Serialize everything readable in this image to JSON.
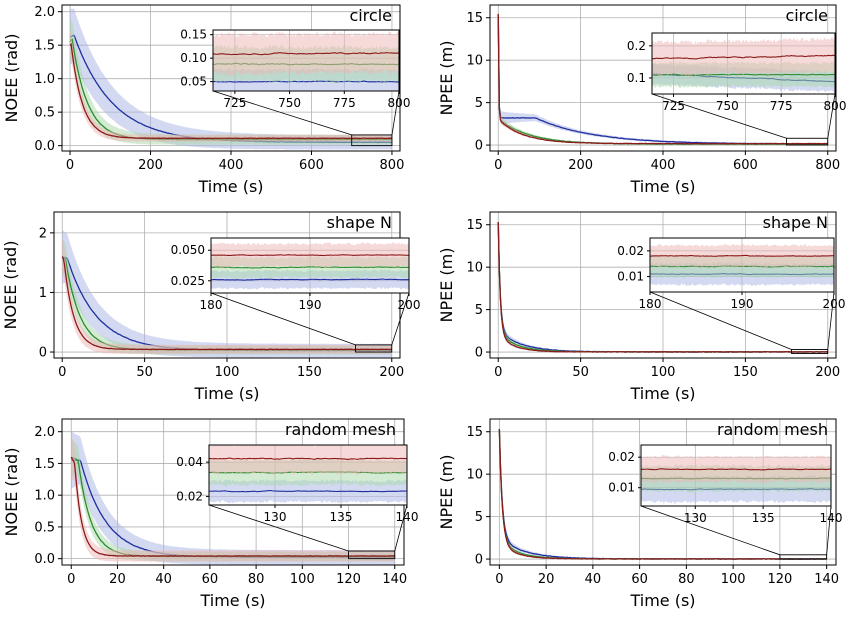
{
  "colors": {
    "blue": "#1f2f9e",
    "green": "#2e8b2e",
    "red": "#8b1a1a",
    "blue_band": "#aab4e6",
    "green_band": "#a6d7a6",
    "red_band": "#eeb4b4"
  },
  "chart_data": [
    {
      "id": "p1",
      "type": "line",
      "title": "circle",
      "xlabel": "Time (s)",
      "ylabel": "NOEE (rad)",
      "xlim": [
        -20,
        820
      ],
      "ylim": [
        -0.08,
        2.1
      ],
      "xticks": [
        0,
        200,
        400,
        600,
        800
      ],
      "yticks": [
        0.0,
        0.5,
        1.0,
        1.5,
        2.0
      ],
      "yfmt": 1,
      "tmax": 800,
      "series": [
        {
          "color": "blue",
          "start": 1.62,
          "peak": 1.65,
          "peakT": 10,
          "tau": 95,
          "final": 0.05,
          "band": 0.42
        },
        {
          "color": "green",
          "start": 1.55,
          "peak": 1.6,
          "peakT": 5,
          "tau": 38,
          "final": 0.09,
          "band": 0.3
        },
        {
          "color": "red",
          "start": 1.5,
          "peak": 1.55,
          "peakT": 2,
          "tau": 28,
          "final": 0.11,
          "band": 0.2
        }
      ],
      "inset": {
        "xlim": [
          715,
          800
        ],
        "ylim": [
          0.03,
          0.16
        ],
        "xticks": [
          725,
          750,
          775,
          800
        ],
        "yticks": [
          0.05,
          0.1,
          0.15
        ],
        "yfmt": 2,
        "levels": {
          "blue": 0.05,
          "green": 0.087,
          "red": 0.11
        },
        "spread": {
          "blue": 0.025,
          "green": 0.035,
          "red": 0.04
        },
        "zoom": [
          700,
          800,
          0,
          0.16
        ]
      }
    },
    {
      "id": "p2",
      "type": "line",
      "title": "circle",
      "xlabel": "Time (s)",
      "ylabel": "NPEE (m)",
      "xlim": [
        -20,
        820
      ],
      "ylim": [
        -0.7,
        16.5
      ],
      "xticks": [
        0,
        200,
        400,
        600,
        800
      ],
      "yticks": [
        0,
        5,
        10,
        15
      ],
      "yfmt": 0,
      "tmax": 800,
      "kind": "npee_circle",
      "series": [
        {
          "color": "blue",
          "start": 15.3,
          "plateau": 3.1,
          "tau": 140,
          "final": 0.1,
          "band": 0.8
        },
        {
          "color": "green",
          "start": 15.3,
          "plateau": 3.0,
          "tau": 75,
          "final": 0.11,
          "band": 0.5
        },
        {
          "color": "red",
          "start": 15.3,
          "plateau": 2.9,
          "tau": 60,
          "final": 0.17,
          "band": 0.4
        }
      ],
      "inset": {
        "xlim": [
          715,
          800
        ],
        "ylim": [
          0.05,
          0.24
        ],
        "xticks": [
          725,
          750,
          775,
          800
        ],
        "yticks": [
          0.1,
          0.2
        ],
        "yfmt": 1,
        "levels": {
          "blue": 0.1,
          "green": 0.11,
          "red": 0.165
        },
        "spread": {
          "blue": 0.03,
          "green": 0.035,
          "red": 0.05
        },
        "trend": {
          "blue": -0.025,
          "green": 0.0,
          "red": 0.01
        },
        "zoom": [
          700,
          800,
          0,
          0.8
        ]
      }
    },
    {
      "id": "p3",
      "type": "line",
      "title": "shape N",
      "xlabel": "Time (s)",
      "ylabel": "NOEE (rad)",
      "xlim": [
        -5,
        205
      ],
      "ylim": [
        -0.1,
        2.35
      ],
      "xticks": [
        0,
        50,
        100,
        150,
        200
      ],
      "yticks": [
        0,
        1,
        2
      ],
      "yfmt": 0,
      "tmax": 200,
      "series": [
        {
          "color": "blue",
          "start": 1.6,
          "peak": 1.58,
          "peakT": 3,
          "tau": 18,
          "final": 0.025,
          "band": 0.45
        },
        {
          "color": "green",
          "start": 1.6,
          "peak": 1.55,
          "peakT": 2,
          "tau": 9,
          "final": 0.036,
          "band": 0.3
        },
        {
          "color": "red",
          "start": 1.6,
          "peak": 1.55,
          "peakT": 1,
          "tau": 6,
          "final": 0.045,
          "band": 0.3
        }
      ],
      "inset": {
        "xlim": [
          180,
          200
        ],
        "ylim": [
          0.015,
          0.06
        ],
        "xticks": [
          180,
          190,
          200
        ],
        "yticks": [
          0.025,
          0.05
        ],
        "yfmt": 3,
        "levels": {
          "blue": 0.026,
          "green": 0.036,
          "red": 0.046
        },
        "spread": {
          "blue": 0.007,
          "green": 0.008,
          "red": 0.009
        },
        "zoom": [
          178,
          200,
          0,
          0.12
        ]
      }
    },
    {
      "id": "p4",
      "type": "line",
      "title": "shape N",
      "xlabel": "Time (s)",
      "ylabel": "NPEE (m)",
      "xlim": [
        -5,
        205
      ],
      "ylim": [
        -0.7,
        16.5
      ],
      "xticks": [
        0,
        50,
        100,
        150,
        200
      ],
      "yticks": [
        0,
        5,
        10,
        15
      ],
      "yfmt": 0,
      "tmax": 200,
      "kind": "npee",
      "series": [
        {
          "color": "blue",
          "start": 15.3,
          "plateau": 2.5,
          "tau": 14,
          "final": 0.012,
          "band": 0.6
        },
        {
          "color": "green",
          "start": 15.3,
          "plateau": 2.3,
          "tau": 11,
          "final": 0.015,
          "band": 0.5
        },
        {
          "color": "red",
          "start": 15.3,
          "plateau": 2.1,
          "tau": 9,
          "final": 0.018,
          "band": 0.4
        }
      ],
      "inset": {
        "xlim": [
          180,
          200
        ],
        "ylim": [
          0.004,
          0.025
        ],
        "xticks": [
          180,
          190,
          200
        ],
        "yticks": [
          0.01,
          0.02
        ],
        "yfmt": 2,
        "levels": {
          "blue": 0.011,
          "green": 0.014,
          "red": 0.018
        },
        "spread": {
          "blue": 0.004,
          "green": 0.004,
          "red": 0.004
        },
        "zoom": [
          178,
          200,
          0,
          0.3
        ]
      }
    },
    {
      "id": "p5",
      "type": "line",
      "title": "random mesh",
      "xlabel": "Time (s)",
      "ylabel": "NOEE (rad)",
      "xlim": [
        -4,
        144
      ],
      "ylim": [
        -0.1,
        2.2
      ],
      "xticks": [
        0,
        20,
        40,
        60,
        80,
        100,
        120,
        140
      ],
      "yticks": [
        0.0,
        0.5,
        1.0,
        1.5,
        2.0
      ],
      "yfmt": 1,
      "tmax": 140,
      "series": [
        {
          "color": "blue",
          "start": 1.55,
          "peak": 1.55,
          "peakT": 4,
          "tau": 11,
          "final": 0.022,
          "band": 0.45
        },
        {
          "color": "green",
          "start": 1.6,
          "peak": 1.55,
          "peakT": 3,
          "tau": 5.5,
          "final": 0.034,
          "band": 0.3
        },
        {
          "color": "red",
          "start": 1.6,
          "peak": 1.5,
          "peakT": 1.5,
          "tau": 3,
          "final": 0.042,
          "band": 0.35
        }
      ],
      "inset": {
        "xlim": [
          125,
          140
        ],
        "ylim": [
          0.015,
          0.05
        ],
        "xticks": [
          130,
          135,
          140
        ],
        "yticks": [
          0.02,
          0.04
        ],
        "yfmt": 2,
        "levels": {
          "blue": 0.023,
          "green": 0.034,
          "red": 0.042
        },
        "spread": {
          "blue": 0.006,
          "green": 0.007,
          "red": 0.008
        },
        "zoom": [
          120,
          140,
          0,
          0.12
        ]
      }
    },
    {
      "id": "p6",
      "type": "line",
      "title": "random mesh",
      "xlabel": "Time (s)",
      "ylabel": "NPEE (m)",
      "xlim": [
        -4,
        144
      ],
      "ylim": [
        -0.7,
        16.5
      ],
      "xticks": [
        0,
        20,
        40,
        60,
        80,
        100,
        120,
        140
      ],
      "yticks": [
        0,
        5,
        10,
        15
      ],
      "yfmt": 0,
      "tmax": 140,
      "kind": "npee",
      "series": [
        {
          "color": "blue",
          "start": 15.3,
          "plateau": 2.4,
          "tau": 11,
          "final": 0.01,
          "band": 0.6
        },
        {
          "color": "green",
          "start": 15.3,
          "plateau": 2.1,
          "tau": 8,
          "final": 0.013,
          "band": 0.45
        },
        {
          "color": "red",
          "start": 15.3,
          "plateau": 1.9,
          "tau": 7,
          "final": 0.016,
          "band": 0.4
        }
      ],
      "inset": {
        "xlim": [
          126,
          140
        ],
        "ylim": [
          0.004,
          0.024
        ],
        "xticks": [
          130,
          135,
          140
        ],
        "yticks": [
          0.01,
          0.02
        ],
        "yfmt": 2,
        "levels": {
          "blue": 0.0095,
          "green": 0.013,
          "red": 0.016
        },
        "spread": {
          "blue": 0.004,
          "green": 0.004,
          "red": 0.004
        },
        "zoom": [
          120,
          140,
          0,
          0.5
        ]
      }
    }
  ]
}
